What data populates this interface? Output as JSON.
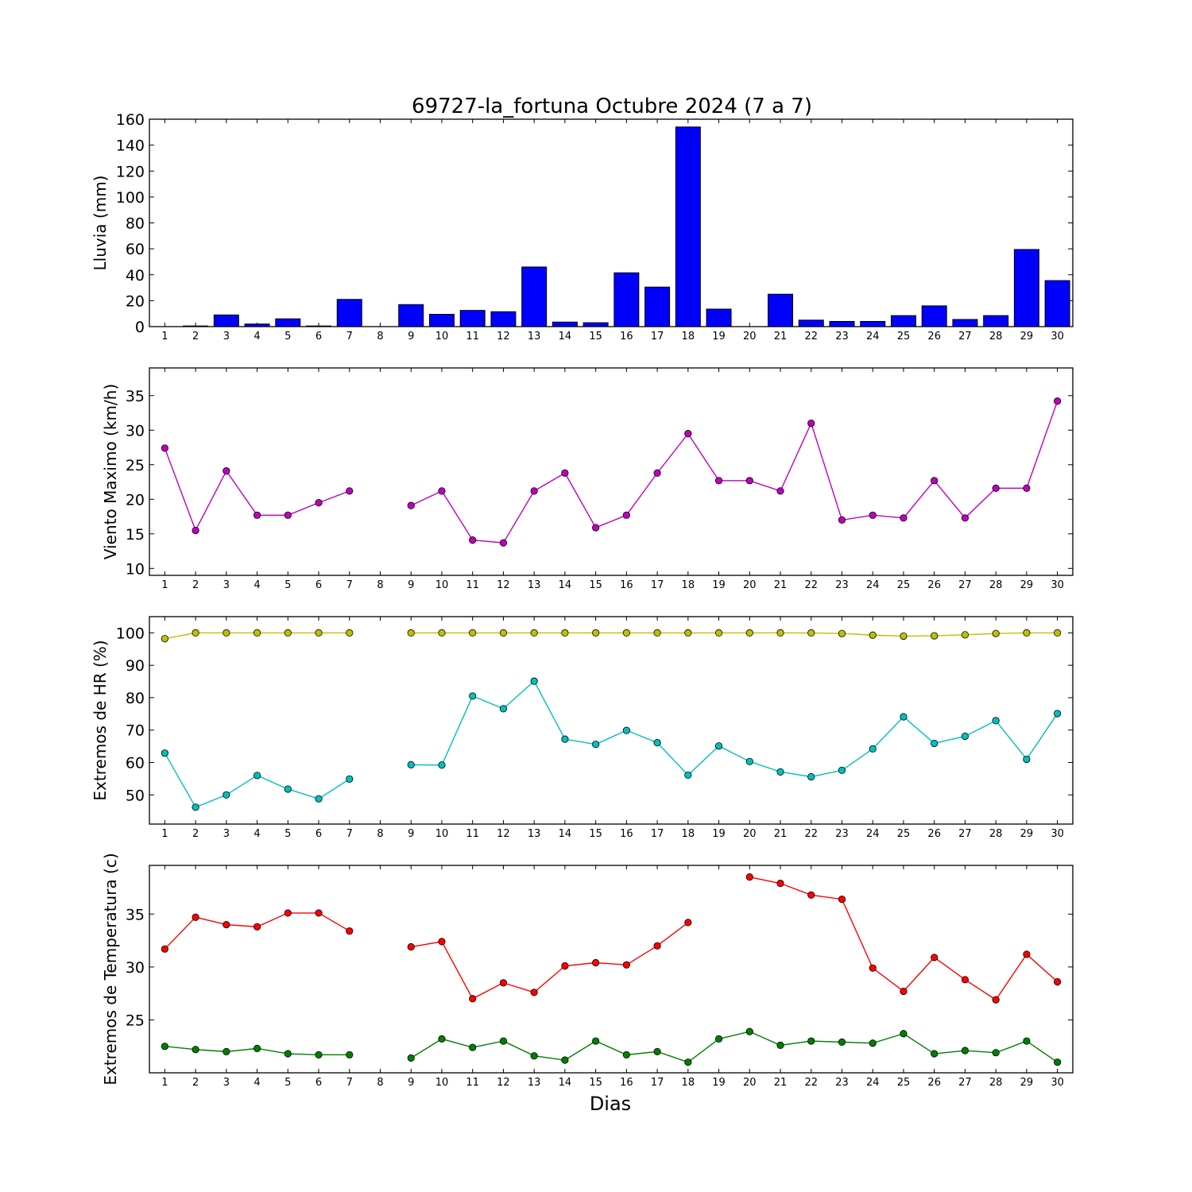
{
  "title": "69727-la_fortuna Octubre 2024  (7 a 7)",
  "xlabel": "Dias",
  "chart_data": [
    {
      "type": "bar",
      "ylabel": "Lluvia (mm)",
      "ylim": [
        0,
        160
      ],
      "yticks": [
        0,
        20,
        40,
        60,
        80,
        100,
        120,
        140,
        160
      ],
      "x": [
        1,
        2,
        3,
        4,
        5,
        6,
        7,
        8,
        9,
        10,
        11,
        12,
        13,
        14,
        15,
        16,
        17,
        18,
        19,
        20,
        21,
        22,
        23,
        24,
        25,
        26,
        27,
        28,
        29,
        30
      ],
      "series": [
        {
          "color": "#0000ff",
          "values": [
            0,
            0.5,
            9,
            2,
            6,
            0.5,
            21,
            0,
            17,
            9.5,
            12.5,
            11.5,
            46,
            3.5,
            3,
            41.5,
            30.5,
            154,
            13.5,
            0,
            25,
            5,
            4,
            4,
            8.5,
            16,
            5.5,
            8.5,
            59.5,
            35.5
          ]
        }
      ]
    },
    {
      "type": "line",
      "ylabel": "Viento Maximo (km/h)",
      "ylim": [
        9,
        39
      ],
      "yticks": [
        10,
        15,
        20,
        25,
        30,
        35
      ],
      "x": [
        1,
        2,
        3,
        4,
        5,
        6,
        7,
        8,
        9,
        10,
        11,
        12,
        13,
        14,
        15,
        16,
        17,
        18,
        19,
        20,
        21,
        22,
        23,
        24,
        25,
        26,
        27,
        28,
        29,
        30
      ],
      "series": [
        {
          "color": "#bf00bf",
          "values": [
            27.4,
            15.5,
            24.1,
            17.7,
            17.7,
            19.5,
            21.2,
            null,
            19.1,
            21.2,
            14.1,
            13.7,
            21.2,
            23.8,
            15.9,
            17.7,
            23.8,
            29.5,
            22.7,
            22.7,
            21.2,
            31.0,
            17.0,
            17.7,
            17.3,
            22.7,
            17.3,
            21.6,
            21.6,
            34.2
          ]
        }
      ]
    },
    {
      "type": "line",
      "ylabel": "Extremos de HR (%)",
      "ylim": [
        41,
        105
      ],
      "yticks": [
        50,
        60,
        70,
        80,
        90,
        100
      ],
      "x": [
        1,
        2,
        3,
        4,
        5,
        6,
        7,
        8,
        9,
        10,
        11,
        12,
        13,
        14,
        15,
        16,
        17,
        18,
        19,
        20,
        21,
        22,
        23,
        24,
        25,
        26,
        27,
        28,
        29,
        30
      ],
      "series": [
        {
          "color": "#bfbf00",
          "values": [
            98.2,
            100,
            100,
            100,
            100,
            100,
            100,
            null,
            100,
            100,
            100,
            100,
            100,
            100,
            100,
            100,
            100,
            100,
            100,
            100,
            100,
            100,
            99.8,
            99.3,
            99.0,
            99.1,
            99.4,
            99.8,
            100,
            100
          ]
        },
        {
          "color": "#00bfbf",
          "values": [
            62.9,
            46.2,
            50.0,
            56.0,
            51.8,
            48.8,
            54.9,
            null,
            59.3,
            59.2,
            80.5,
            76.6,
            85.1,
            67.2,
            65.6,
            69.9,
            66.1,
            56.1,
            65.1,
            60.3,
            57.1,
            55.6,
            57.6,
            64.2,
            74.1,
            65.9,
            68.1,
            72.9,
            61.0,
            75.1
          ]
        }
      ]
    },
    {
      "type": "line",
      "ylabel": "Extremos de Temperatura (c)",
      "ylim": [
        20,
        39.6
      ],
      "yticks": [
        25,
        30,
        35
      ],
      "x": [
        1,
        2,
        3,
        4,
        5,
        6,
        7,
        8,
        9,
        10,
        11,
        12,
        13,
        14,
        15,
        16,
        17,
        18,
        19,
        20,
        21,
        22,
        23,
        24,
        25,
        26,
        27,
        28,
        29,
        30
      ],
      "series": [
        {
          "color": "#ff0000",
          "values": [
            31.7,
            34.7,
            34.0,
            33.8,
            35.1,
            35.1,
            33.4,
            null,
            31.9,
            32.4,
            27.0,
            28.5,
            27.6,
            30.1,
            30.4,
            30.2,
            32.0,
            34.2,
            null,
            38.5,
            37.9,
            36.8,
            36.4,
            29.9,
            27.7,
            30.9,
            28.8,
            26.9,
            31.2,
            28.6
          ]
        },
        {
          "color": "#007f00",
          "values": [
            22.5,
            22.2,
            22.0,
            22.3,
            21.8,
            21.7,
            21.7,
            null,
            21.4,
            23.2,
            22.4,
            23.0,
            21.6,
            21.2,
            23.0,
            21.7,
            22.0,
            21.0,
            23.2,
            23.9,
            22.6,
            23.0,
            22.9,
            22.8,
            23.7,
            21.8,
            22.1,
            21.9,
            23.0,
            21.0
          ]
        }
      ]
    }
  ]
}
